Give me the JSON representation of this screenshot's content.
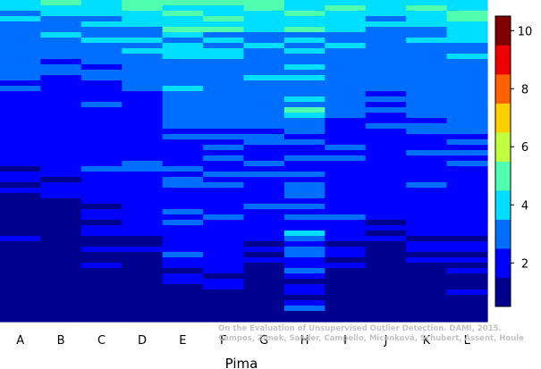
{
  "chart_data": {
    "type": "heatmap",
    "title": "",
    "xlabel": "Pima",
    "ylabel": "",
    "categories": [
      "A",
      "B",
      "C",
      "D",
      "E",
      "F",
      "G",
      "H",
      "I",
      "J",
      "K",
      "L"
    ],
    "rows": 60,
    "row_order": "top row = highest-ranked outlier, bottom row = lowest",
    "columns": [
      [
        4,
        4,
        3,
        4,
        3,
        3,
        3,
        3,
        3,
        3,
        3,
        3,
        3,
        3,
        3,
        2,
        3,
        2,
        2,
        2,
        2,
        2,
        2,
        2,
        2,
        2,
        2,
        2,
        2,
        2,
        2,
        1,
        2,
        2,
        1,
        2,
        1,
        1,
        1,
        1,
        1,
        1,
        1,
        1,
        2,
        1,
        1,
        1,
        1,
        1,
        1,
        1,
        1,
        1,
        1,
        1,
        1,
        1,
        1,
        1
      ],
      [
        5,
        4,
        4,
        3,
        3,
        3,
        4,
        3,
        3,
        3,
        3,
        2,
        3,
        3,
        2,
        2,
        2,
        2,
        2,
        2,
        2,
        2,
        2,
        2,
        2,
        2,
        2,
        2,
        2,
        2,
        2,
        2,
        2,
        1,
        2,
        2,
        2,
        1,
        1,
        1,
        1,
        1,
        1,
        1,
        1,
        1,
        1,
        1,
        1,
        1,
        1,
        1,
        1,
        1,
        1,
        1,
        1,
        1,
        1,
        1
      ],
      [
        4,
        4,
        4,
        3,
        4,
        3,
        3,
        4,
        3,
        3,
        3,
        3,
        2,
        3,
        3,
        2,
        2,
        2,
        2,
        3,
        2,
        2,
        2,
        2,
        2,
        2,
        2,
        2,
        2,
        2,
        2,
        3,
        2,
        2,
        2,
        2,
        2,
        2,
        1,
        2,
        2,
        1,
        2,
        2,
        1,
        1,
        2,
        1,
        1,
        2,
        1,
        1,
        1,
        1,
        1,
        1,
        1,
        1,
        1,
        1
      ],
      [
        5,
        5,
        4,
        4,
        4,
        3,
        3,
        4,
        3,
        4,
        3,
        3,
        3,
        3,
        3,
        3,
        3,
        2,
        2,
        2,
        2,
        2,
        2,
        2,
        2,
        2,
        2,
        2,
        2,
        2,
        3,
        3,
        2,
        2,
        2,
        2,
        2,
        2,
        2,
        2,
        2,
        2,
        2,
        2,
        1,
        1,
        2,
        1,
        1,
        1,
        1,
        1,
        1,
        1,
        1,
        1,
        1,
        1,
        1,
        1
      ],
      [
        5,
        4,
        5,
        4,
        4,
        5,
        4,
        3,
        4,
        4,
        4,
        3,
        3,
        3,
        3,
        3,
        4,
        3,
        3,
        3,
        3,
        3,
        3,
        3,
        2,
        3,
        2,
        2,
        2,
        2,
        2,
        3,
        2,
        3,
        3,
        2,
        2,
        2,
        2,
        3,
        2,
        3,
        2,
        2,
        2,
        2,
        2,
        3,
        2,
        2,
        1,
        2,
        2,
        1,
        1,
        1,
        1,
        1,
        1,
        1
      ],
      [
        5,
        4,
        4,
        5,
        4,
        5,
        3,
        4,
        3,
        4,
        4,
        3,
        3,
        3,
        3,
        3,
        3,
        3,
        3,
        3,
        3,
        3,
        3,
        3,
        2,
        3,
        2,
        3,
        2,
        3,
        2,
        2,
        3,
        2,
        3,
        2,
        2,
        2,
        2,
        2,
        3,
        2,
        2,
        2,
        2,
        2,
        2,
        2,
        2,
        2,
        2,
        1,
        2,
        2,
        1,
        1,
        1,
        1,
        1,
        1
      ],
      [
        5,
        5,
        4,
        4,
        4,
        4,
        3,
        3,
        4,
        3,
        3,
        3,
        3,
        3,
        4,
        3,
        3,
        3,
        3,
        3,
        3,
        3,
        3,
        3,
        2,
        3,
        3,
        2,
        2,
        2,
        3,
        2,
        3,
        2,
        2,
        2,
        2,
        2,
        3,
        2,
        2,
        2,
        2,
        2,
        2,
        1,
        2,
        1,
        2,
        1,
        1,
        1,
        1,
        1,
        1,
        1,
        1,
        1,
        1,
        1
      ],
      [
        4,
        4,
        5,
        4,
        4,
        5,
        3,
        4,
        3,
        4,
        3,
        3,
        4,
        3,
        4,
        3,
        3,
        3,
        4,
        3,
        5,
        4,
        3,
        3,
        3,
        2,
        3,
        2,
        2,
        3,
        2,
        2,
        3,
        2,
        3,
        3,
        3,
        2,
        3,
        2,
        3,
        2,
        2,
        4,
        3,
        2,
        3,
        3,
        2,
        2,
        3,
        2,
        1,
        2,
        2,
        1,
        2,
        3,
        1,
        1
      ],
      [
        4,
        5,
        4,
        4,
        4,
        4,
        3,
        3,
        4,
        3,
        3,
        3,
        3,
        3,
        3,
        3,
        3,
        3,
        3,
        3,
        3,
        3,
        2,
        2,
        2,
        2,
        2,
        3,
        2,
        3,
        2,
        2,
        2,
        2,
        2,
        2,
        2,
        2,
        2,
        2,
        3,
        2,
        2,
        2,
        2,
        1,
        2,
        2,
        1,
        2,
        1,
        1,
        1,
        1,
        1,
        1,
        1,
        1,
        1,
        1
      ],
      [
        4,
        4,
        4,
        3,
        4,
        3,
        3,
        3,
        3,
        3,
        3,
        3,
        3,
        3,
        3,
        3,
        3,
        2,
        3,
        2,
        3,
        2,
        2,
        3,
        2,
        2,
        2,
        2,
        2,
        2,
        2,
        2,
        2,
        2,
        2,
        2,
        2,
        2,
        2,
        2,
        2,
        1,
        2,
        1,
        2,
        1,
        1,
        1,
        1,
        1,
        1,
        1,
        1,
        1,
        1,
        1,
        1,
        1,
        1,
        1
      ],
      [
        4,
        5,
        4,
        4,
        4,
        3,
        3,
        4,
        3,
        3,
        3,
        3,
        3,
        3,
        3,
        3,
        3,
        3,
        3,
        3,
        3,
        3,
        2,
        3,
        3,
        2,
        2,
        2,
        3,
        2,
        2,
        2,
        2,
        2,
        3,
        2,
        2,
        2,
        2,
        2,
        2,
        2,
        2,
        2,
        1,
        2,
        2,
        1,
        2,
        1,
        1,
        1,
        1,
        1,
        1,
        1,
        1,
        1,
        1,
        1
      ],
      [
        4,
        4,
        5,
        5,
        4,
        4,
        4,
        4,
        3,
        3,
        4,
        3,
        3,
        3,
        3,
        3,
        3,
        3,
        3,
        3,
        3,
        3,
        3,
        3,
        3,
        2,
        3,
        2,
        3,
        2,
        3,
        2,
        2,
        2,
        2,
        2,
        2,
        2,
        2,
        2,
        2,
        2,
        2,
        2,
        1,
        2,
        2,
        1,
        2,
        1,
        2,
        1,
        1,
        1,
        2,
        1,
        1,
        1,
        1,
        1
      ]
    ],
    "color_scale": {
      "min": 1,
      "max": 10,
      "levels": 13,
      "colors": [
        "#00008f",
        "#0000ff",
        "#006fff",
        "#00dfff",
        "#4fffaf",
        "#bfff3f",
        "#ffcf00",
        "#ff6000",
        "#ef0000",
        "#800000"
      ]
    },
    "legend": {
      "placement": "right",
      "ticks": [
        2,
        4,
        6,
        8,
        10
      ],
      "tick_labels": [
        "2",
        "4",
        "6",
        "8",
        "10"
      ]
    },
    "watermark": [
      "On the Evaluation of Unsupervised Outlier Detection. DAMI, 2015.",
      "Campos, Zimek, Sander, Campello, Micenková, Schubert, Assent, Houle"
    ]
  }
}
